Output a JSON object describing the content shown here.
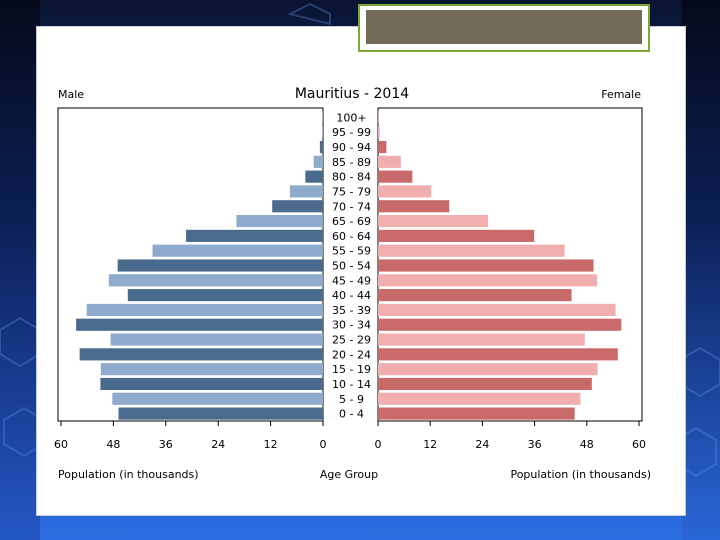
{
  "chart_data": {
    "type": "bar",
    "title": "Mauritius - 2014",
    "left_label": "Male",
    "right_label": "Female",
    "center_label": "Age Group",
    "xlabel_left": "Population (in thousands)",
    "xlabel_right": "Population (in thousands)",
    "categories": [
      "100+",
      "95 - 99",
      "90 - 94",
      "85 - 89",
      "80 - 84",
      "75 - 79",
      "70 - 74",
      "65 - 69",
      "60 - 64",
      "55 - 59",
      "50 - 54",
      "45 - 49",
      "40 - 44",
      "35 - 39",
      "30 - 34",
      "25 - 29",
      "20 - 24",
      "15 - 19",
      "10 - 14",
      "5 - 9",
      "0 - 4"
    ],
    "series": [
      {
        "values": [
          0.1,
          0.2,
          0.7,
          2.1,
          4.0,
          7.5,
          11.5,
          19.6,
          31.0,
          38.6,
          46.5,
          48.5,
          44.2,
          53.5,
          55.9,
          48.1,
          55.1,
          50.3,
          50.4,
          47.7,
          46.3
        ]
      },
      {
        "values": [
          0.1,
          0.4,
          1.9,
          5.2,
          7.8,
          12.1,
          16.2,
          25.0,
          35.5,
          42.4,
          49.0,
          49.8,
          44.0,
          54.0,
          55.3,
          47.0,
          54.5,
          49.9,
          48.6,
          46.0,
          44.7
        ]
      }
    ],
    "xticks": [
      "60",
      "48",
      "36",
      "24",
      "12",
      "0"
    ],
    "xticks_right": [
      "0",
      "12",
      "24",
      "36",
      "48",
      "60"
    ],
    "xlim": [
      0,
      60
    ],
    "colors": {
      "male_dark": "#4a6a8e",
      "male_light": "#8eaacc",
      "female_dark": "#c96a6a",
      "female_light": "#f0aeae"
    },
    "grid": false
  }
}
